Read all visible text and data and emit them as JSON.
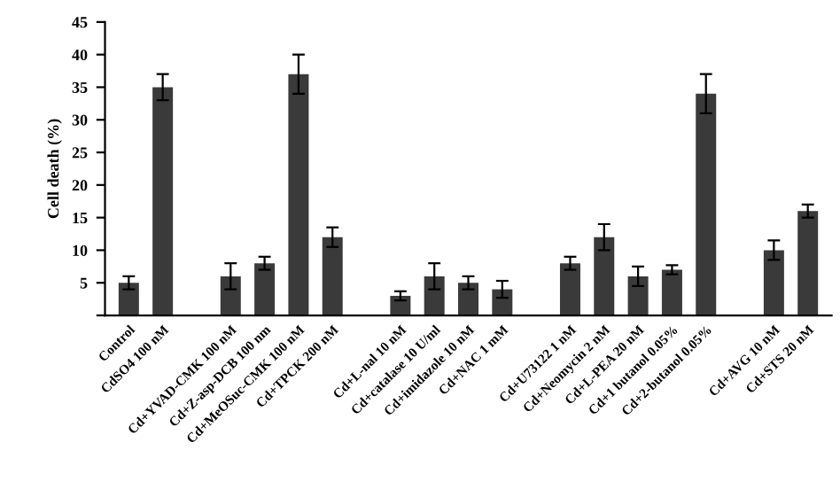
{
  "chart_data": {
    "type": "bar",
    "ylabel": "Cell death (%)",
    "categories": [
      "Control",
      "CdSO4 100 nM",
      null,
      "Cd+YVAD-CMK 100 nM",
      "Cd+Z-asp-DCB 100 nm",
      "Cd+MeOSuc-CMK 100 nM",
      "Cd+TPCK 200 nM",
      null,
      "Cd+L-nal 10 nM",
      "Cd+catalase 10 U/ml",
      "Cd+imidazole 10 nM",
      "Cd+NAC 1 mM",
      null,
      "Cd+U73122 1 nM",
      "Cd+Neomycin 2 nM",
      "Cd+L-PEA 20 nM",
      "Cd+1 butanol 0.05%",
      "Cd+2-butanol 0.05%",
      null,
      "Cd+AVG 10 nM",
      "Cd+STS 20 nM"
    ],
    "values": [
      5,
      35,
      null,
      6,
      8,
      37,
      12,
      null,
      3,
      6,
      5,
      4,
      null,
      8,
      12,
      6,
      7,
      34,
      null,
      10,
      16
    ],
    "errors": [
      1,
      2,
      null,
      2,
      1,
      3,
      1.5,
      null,
      0.7,
      2,
      1,
      1.3,
      null,
      1,
      2,
      1.5,
      0.7,
      3,
      null,
      1.5,
      1
    ],
    "color": "#3a3a3a",
    "ylim": [
      0,
      45
    ],
    "yticks": [
      {
        "value": 0,
        "label": null
      },
      5,
      10,
      15,
      20,
      25,
      30,
      35,
      40,
      45
    ],
    "grid": false
  }
}
